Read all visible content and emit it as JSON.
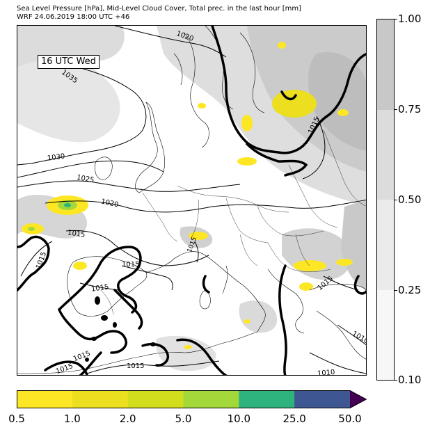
{
  "title": {
    "line1": "Sea Level Pressure [hPa], Mid-Level Cloud Cover, Total prec. in the last hour [mm]",
    "line2": "WRF 24.06.2019 18:00 UTC +46"
  },
  "timestamp_label": "16 UTC Wed",
  "isobar_labels": [
    "1020",
    "1035",
    "1030",
    "1025",
    "1020",
    "1015",
    "1015",
    "1015",
    "1015",
    "1015",
    "1015",
    "1015",
    "1015",
    "1010",
    "1015",
    "1015",
    "1010"
  ],
  "cloud_colorbar": {
    "ticks": [
      "1.00",
      "0.75",
      "0.50",
      "0.25",
      "0.10"
    ],
    "colors": [
      "#c8c8c8",
      "#dcdcdc",
      "#ebebeb",
      "#f7f7f7"
    ]
  },
  "precip_colorbar": {
    "ticks": [
      "0.5",
      "1.0",
      "2.0",
      "5.0",
      "10.0",
      "25.0",
      "50.0"
    ],
    "colors": [
      "#fde725",
      "#ecdf20",
      "#d2dd1c",
      "#a2d83a",
      "#2eb37c",
      "#3e5692",
      "#440154"
    ]
  },
  "colors": {
    "land_border": "#000000",
    "isobar": "#000000"
  }
}
